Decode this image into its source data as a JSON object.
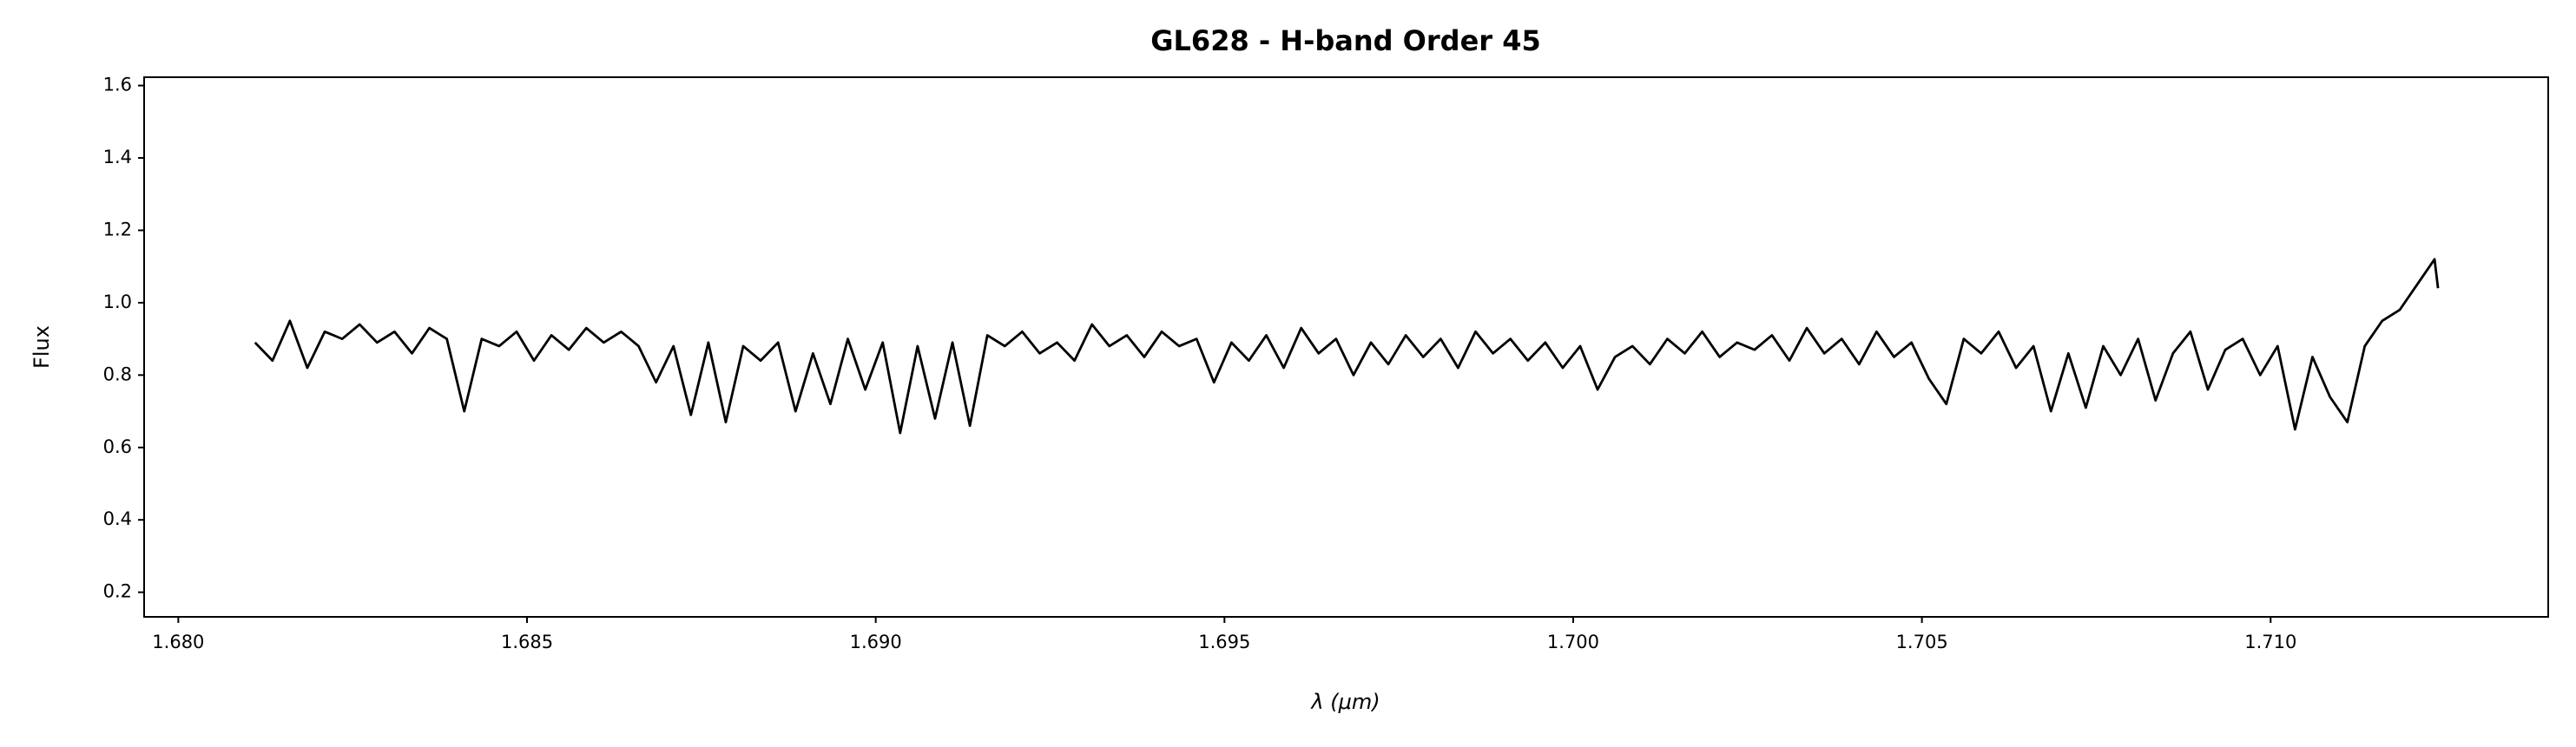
{
  "chart_data": {
    "type": "line",
    "title": "GL628 - H-band Order 45",
    "xlabel": "λ (μm)",
    "ylabel": "Flux",
    "xlim": [
      1.67951,
      1.71398
    ],
    "ylim": [
      0.132,
      1.623
    ],
    "xticks": [
      {
        "value": 1.68,
        "label": "1.680"
      },
      {
        "value": 1.685,
        "label": "1.685"
      },
      {
        "value": 1.69,
        "label": "1.690"
      },
      {
        "value": 1.695,
        "label": "1.695"
      },
      {
        "value": 1.7,
        "label": "1.700"
      },
      {
        "value": 1.705,
        "label": "1.705"
      },
      {
        "value": 1.71,
        "label": "1.710"
      }
    ],
    "yticks": [
      0.2,
      0.4,
      0.6,
      0.8,
      {
        "value": 1,
        "label": "1.0"
      },
      1.2,
      1.4,
      1.6
    ],
    "grid": false,
    "x": [
      1.6811,
      1.68135,
      1.6816,
      1.68185,
      1.6821,
      1.68235,
      1.6826,
      1.68285,
      1.6831,
      1.68335,
      1.6836,
      1.68385,
      1.6841,
      1.68435,
      1.6846,
      1.68485,
      1.6851,
      1.68535,
      1.6856,
      1.68585,
      1.6861,
      1.68635,
      1.6866,
      1.68685,
      1.6871,
      1.68735,
      1.6876,
      1.68785,
      1.6881,
      1.68835,
      1.6886,
      1.68885,
      1.6891,
      1.68935,
      1.6896,
      1.68985,
      1.6901,
      1.69035,
      1.6906,
      1.69085,
      1.6911,
      1.69135,
      1.6916,
      1.69185,
      1.6921,
      1.69235,
      1.6926,
      1.69285,
      1.6931,
      1.69335,
      1.6936,
      1.69385,
      1.6941,
      1.69435,
      1.6946,
      1.69485,
      1.6951,
      1.69535,
      1.6956,
      1.69585,
      1.6961,
      1.69635,
      1.6966,
      1.69685,
      1.6971,
      1.69735,
      1.6976,
      1.69785,
      1.6981,
      1.69835,
      1.6986,
      1.69885,
      1.6991,
      1.69935,
      1.6996,
      1.69985,
      1.7001,
      1.70035,
      1.7006,
      1.70085,
      1.7011,
      1.70135,
      1.7016,
      1.70185,
      1.7021,
      1.70235,
      1.7026,
      1.70285,
      1.7031,
      1.70335,
      1.7036,
      1.70385,
      1.7041,
      1.70435,
      1.7046,
      1.70485,
      1.7051,
      1.70535,
      1.7056,
      1.70585,
      1.7061,
      1.70635,
      1.7066,
      1.70685,
      1.7071,
      1.70735,
      1.7076,
      1.70785,
      1.7081,
      1.70835,
      1.7086,
      1.70885,
      1.7091,
      1.70935,
      1.7096,
      1.70985,
      1.7101,
      1.71035,
      1.7106,
      1.71085,
      1.7111,
      1.71135,
      1.7116,
      1.71185,
      1.7121,
      1.71235,
      1.7124
    ],
    "series": [
      {
        "color": "#000000",
        "values": [
          0.89,
          0.84,
          0.95,
          0.82,
          0.92,
          0.9,
          0.94,
          0.89,
          0.92,
          0.86,
          0.93,
          0.9,
          0.7,
          0.9,
          0.88,
          0.92,
          0.84,
          0.91,
          0.87,
          0.93,
          0.89,
          0.92,
          0.88,
          0.78,
          0.88,
          0.69,
          0.89,
          0.67,
          0.88,
          0.84,
          0.89,
          0.7,
          0.86,
          0.72,
          0.9,
          0.76,
          0.89,
          0.64,
          0.88,
          0.68,
          0.89,
          0.66,
          0.91,
          0.88,
          0.92,
          0.86,
          0.89,
          0.84,
          0.94,
          0.88,
          0.91,
          0.85,
          0.92,
          0.88,
          0.9,
          0.78,
          0.89,
          0.84,
          0.91,
          0.82,
          0.93,
          0.86,
          0.9,
          0.8,
          0.89,
          0.83,
          0.91,
          0.85,
          0.9,
          0.82,
          0.92,
          0.86,
          0.9,
          0.84,
          0.89,
          0.82,
          0.88,
          0.76,
          0.85,
          0.88,
          0.83,
          0.9,
          0.86,
          0.92,
          0.85,
          0.89,
          0.87,
          0.91,
          0.84,
          0.93,
          0.86,
          0.9,
          0.83,
          0.92,
          0.85,
          0.89,
          0.79,
          0.72,
          0.9,
          0.86,
          0.92,
          0.82,
          0.88,
          0.7,
          0.86,
          0.71,
          0.88,
          0.8,
          0.9,
          0.73,
          0.86,
          0.92,
          0.76,
          0.87,
          0.9,
          0.8,
          0.88,
          0.65,
          0.85,
          0.74,
          0.67,
          0.88,
          0.95,
          0.98,
          1.05,
          1.12,
          1.04
        ]
      }
    ]
  }
}
